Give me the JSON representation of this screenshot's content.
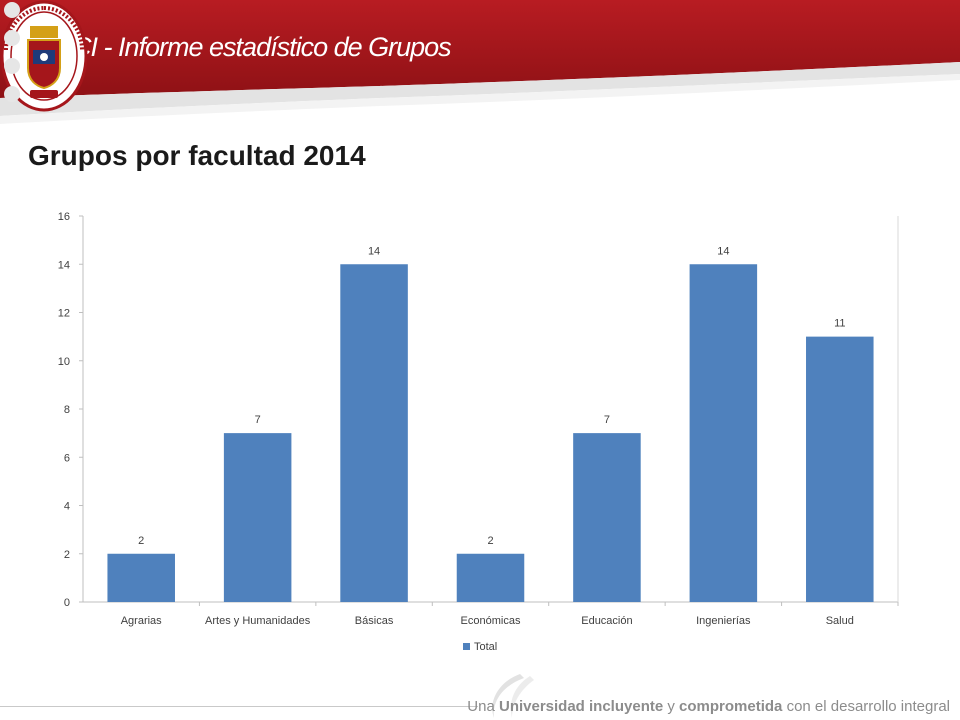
{
  "header": {
    "title": "VINCI - Informe estadístico de Grupos",
    "bg_color": "#a5161b",
    "logo": {
      "name": "Universidad de Pamplona seal",
      "ring_text": "UNIVERSIDAD DE PAMPLONA",
      "bottom_text": "COLOMBIA"
    }
  },
  "slide": {
    "title": "Grupos por facultad 2014"
  },
  "chart_data": {
    "type": "bar",
    "title": "Grupos por facultad 2014",
    "categories": [
      "Agrarias",
      "Artes y Humanidades",
      "Básicas",
      "Económicas",
      "Educación",
      "Ingenierías",
      "Salud"
    ],
    "series": [
      {
        "name": "Total",
        "values": [
          2,
          7,
          14,
          2,
          7,
          14,
          11
        ],
        "color": "#4f81bd"
      }
    ],
    "ylim": [
      0,
      16
    ],
    "yticks": [
      0,
      2,
      4,
      6,
      8,
      10,
      12,
      14,
      16
    ],
    "grid": false,
    "data_labels": true,
    "legend_position": "bottom"
  },
  "footer": {
    "text_parts": [
      {
        "text": "Una ",
        "bold": false
      },
      {
        "text": "Universidad incluyente",
        "bold": true
      },
      {
        "text": " y ",
        "bold": false
      },
      {
        "text": "comprometida",
        "bold": true
      },
      {
        "text": " con el desarrollo integral",
        "bold": false
      }
    ]
  }
}
